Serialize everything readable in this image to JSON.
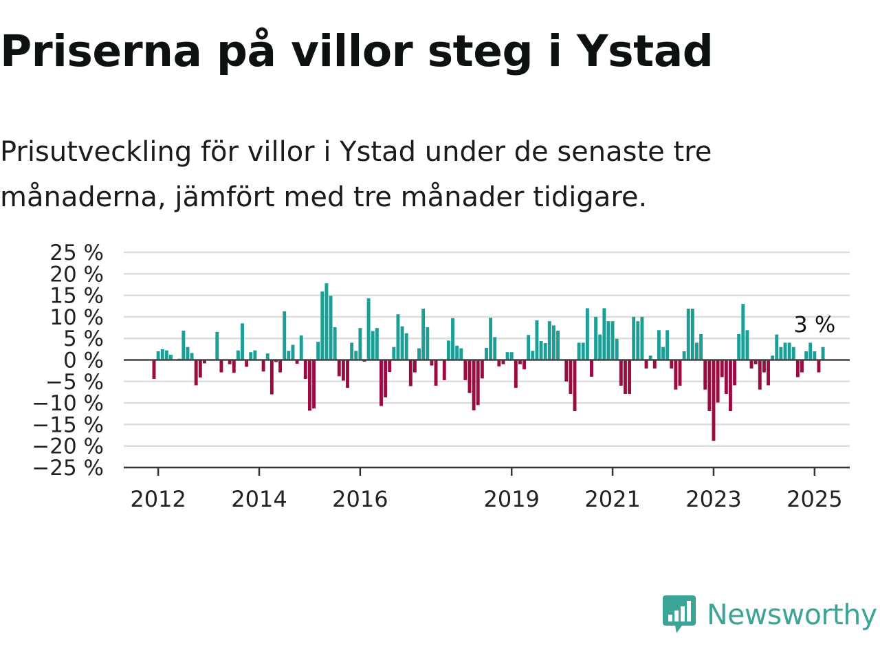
{
  "title": "Priserna på villor steg i Ystad",
  "subtitle": "Prisutveckling för villor i Ystad under de senaste tre månaderna, jämfört med tre månader tidigare.",
  "logo": {
    "name": "Newsworthy",
    "icon": "newsworthy-logo-icon",
    "color": "#3aa597"
  },
  "chart_data": {
    "type": "bar",
    "title": "Priserna på villor steg i Ystad",
    "subtitle": "Prisutveckling för villor i Ystad under de senaste tre månaderna, jämfört med tre månader tidigare.",
    "xlabel": "",
    "ylabel": "",
    "x_start": "2011-12",
    "x_interval": "month",
    "ylim": [
      -25,
      25
    ],
    "y_ticks": [
      25,
      20,
      15,
      10,
      5,
      0,
      -5,
      -10,
      -15,
      -20,
      -25
    ],
    "y_tick_labels": [
      "25 %",
      "20 %",
      "15 %",
      "10 %",
      "5 %",
      "0 %",
      "−5 %",
      "−10 %",
      "−15 %",
      "−20 %",
      "−25 %"
    ],
    "x_tick_labels": [
      {
        "label": "2012",
        "x": "2012-01"
      },
      {
        "label": "2014",
        "x": "2014-01"
      },
      {
        "label": "2016",
        "x": "2016-01"
      },
      {
        "label": "2019",
        "x": "2019-01"
      },
      {
        "label": "2021",
        "x": "2021-01"
      },
      {
        "label": "2023",
        "x": "2023-01"
      },
      {
        "label": "2025",
        "x": "2025-01"
      }
    ],
    "grid": true,
    "colors": {
      "positive": "#1a9e95",
      "negative": "#9b0a40",
      "grid": "#dddddd",
      "zero": "#444444"
    },
    "annotation": {
      "text": "3 %",
      "x": "2025-01"
    },
    "values": [
      -4.4,
      2.0,
      2.5,
      2.2,
      1.2,
      0,
      0.3,
      6.8,
      3.0,
      1.6,
      -5.9,
      -4.1,
      -0.8,
      0,
      0,
      6.5,
      -2.9,
      0,
      -1.0,
      -3.0,
      2.2,
      8.5,
      -1.6,
      1.8,
      2.2,
      0,
      -2.7,
      1.5,
      -8.0,
      -0.5,
      -2.9,
      11.3,
      2.1,
      3.5,
      -0.9,
      5.7,
      -4.4,
      -11.8,
      -11.3,
      4.2,
      15.9,
      17.8,
      14.9,
      7.6,
      -3.8,
      -4.8,
      -6.5,
      4.0,
      2.1,
      7.4,
      -0.4,
      14.3,
      6.7,
      7.4,
      -10.7,
      -8.7,
      -2.8,
      3.0,
      10.6,
      7.8,
      6.2,
      -6.1,
      -2.9,
      2.7,
      11.9,
      7.6,
      -1.3,
      -6.0,
      0,
      -4.7,
      4.5,
      9.7,
      3.3,
      2.7,
      -4.7,
      -7.7,
      -11.7,
      -10.5,
      -4.3,
      2.8,
      9.8,
      5.3,
      -1.5,
      -1.0,
      1.8,
      1.8,
      -6.5,
      -1.0,
      -2.2,
      5.8,
      2.1,
      9.2,
      4.4,
      3.9,
      9.0,
      8.0,
      6.8,
      0,
      -5.0,
      -7.9,
      -11.9,
      4.0,
      4.0,
      12.0,
      -3.9,
      10.0,
      5.9,
      12.0,
      9.0,
      9.0,
      4.9,
      -6.0,
      -7.9,
      -7.9,
      10.0,
      9.0,
      10.0,
      -2.0,
      1.0,
      -2.0,
      6.9,
      3.0,
      6.9,
      -2.0,
      -6.9,
      -6.0,
      2.0,
      11.9,
      11.9,
      4.0,
      6.0,
      -6.9,
      -11.9,
      -18.8,
      -9.9,
      -4.0,
      -7.9,
      -11.9,
      -5.9,
      6.0,
      13.0,
      6.9,
      -2.0,
      -1.0,
      -6.9,
      -2.9,
      -5.9,
      1.0,
      5.9,
      3.0,
      4.0,
      4.0,
      3.0,
      -4.0,
      -2.9,
      2.0,
      4.0,
      2.0,
      -2.9,
      3.0
    ]
  }
}
